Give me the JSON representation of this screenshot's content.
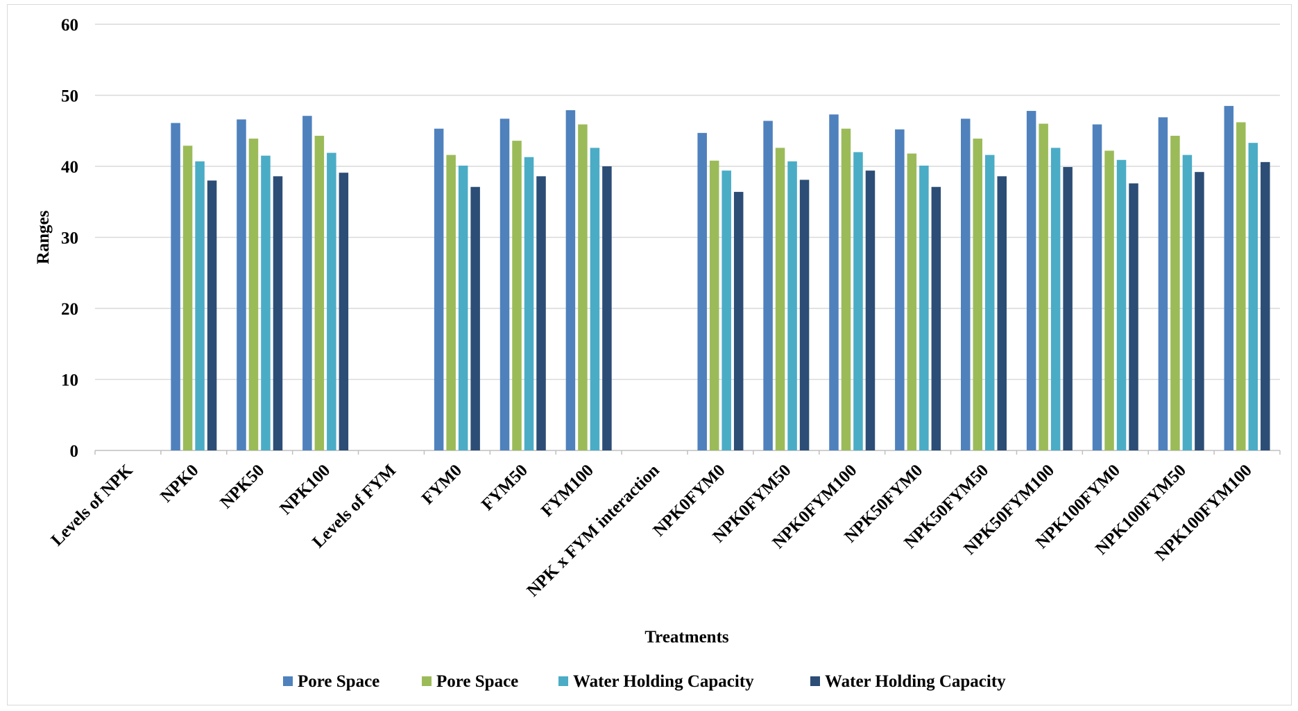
{
  "chart_data": {
    "type": "bar",
    "title": "",
    "xlabel": "Treatments",
    "ylabel": "Ranges",
    "ylim": [
      0,
      60
    ],
    "yticks": [
      0,
      10,
      20,
      30,
      40,
      50,
      60
    ],
    "grid": true,
    "legend_position": "bottom",
    "categories": [
      "Levels of NPK",
      "NPK0",
      "NPK50",
      "NPK100",
      "Levels of FYM",
      "FYM0",
      "FYM50",
      "FYM100",
      "NPK x FYM interaction",
      "NPK0FYM0",
      "NPK0FYM50",
      "NPK0FYM100",
      "NPK50FYM0",
      "NPK50FYM50",
      "NPK50FYM100",
      "NPK100FYM0",
      "NPK100FYM50",
      "NPK100FYM100"
    ],
    "series": [
      {
        "name": "Pore Space",
        "color": "#4f81bd",
        "values": [
          null,
          46.1,
          46.6,
          47.1,
          null,
          45.3,
          46.7,
          47.9,
          null,
          44.7,
          46.4,
          47.3,
          45.2,
          46.7,
          47.8,
          45.9,
          46.9,
          48.5
        ]
      },
      {
        "name": "Pore Space",
        "color": "#9bbb59",
        "values": [
          null,
          42.9,
          43.9,
          44.3,
          null,
          41.6,
          43.6,
          45.9,
          null,
          40.8,
          42.6,
          45.3,
          41.8,
          43.9,
          46.0,
          42.2,
          44.3,
          46.2
        ]
      },
      {
        "name": "Water Holding Capacity",
        "color": "#4bacc6",
        "values": [
          null,
          40.7,
          41.5,
          41.9,
          null,
          40.1,
          41.3,
          42.6,
          null,
          39.4,
          40.7,
          42.0,
          40.1,
          41.6,
          42.6,
          40.9,
          41.6,
          43.3
        ]
      },
      {
        "name": "Water Holding Capacity",
        "color": "#2c4d75",
        "values": [
          null,
          38.0,
          38.6,
          39.1,
          null,
          37.1,
          38.6,
          40.0,
          null,
          36.4,
          38.1,
          39.4,
          37.1,
          38.6,
          39.9,
          37.6,
          39.2,
          40.6
        ]
      }
    ]
  }
}
